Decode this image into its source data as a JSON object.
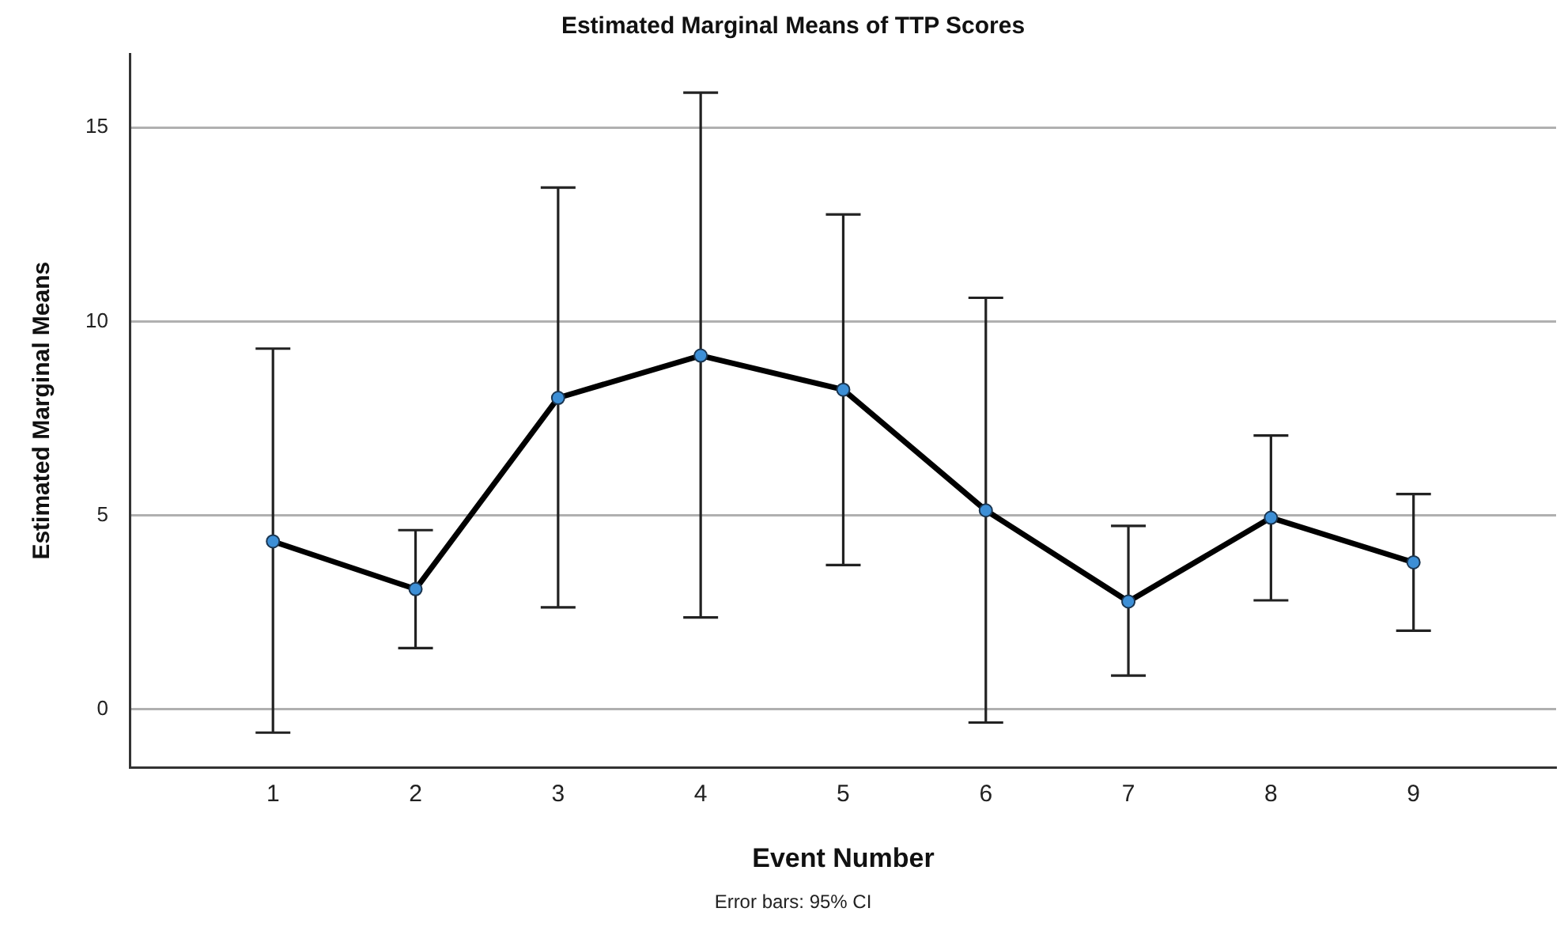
{
  "chart_data": {
    "type": "line",
    "title": "Estimated Marginal Means of TTP Scores",
    "xlabel": "Event Number",
    "ylabel": "Estimated Marginal Means",
    "annotations": [
      "Error bars: 95% CI"
    ],
    "categories": [
      "1",
      "2",
      "3",
      "4",
      "5",
      "6",
      "7",
      "8",
      "9"
    ],
    "series": [
      {
        "color": "#000000",
        "values": [
          4.33,
          3.1,
          8.03,
          9.12,
          8.24,
          5.13,
          2.78,
          4.94,
          3.79
        ],
        "errors": [
          [
            -0.6,
            9.3
          ],
          [
            1.58,
            4.62
          ],
          [
            2.63,
            13.45
          ],
          [
            2.37,
            15.9
          ],
          [
            3.72,
            12.76
          ],
          [
            -0.34,
            10.61
          ],
          [
            0.87,
            4.73
          ],
          [
            2.81,
            7.06
          ],
          [
            2.03,
            5.55
          ]
        ]
      }
    ],
    "ylim": [
      -1.5,
      16.9
    ],
    "yticks": [
      0,
      5,
      10,
      15
    ],
    "grid": "y",
    "marker": "circle",
    "line_style": "solid"
  }
}
